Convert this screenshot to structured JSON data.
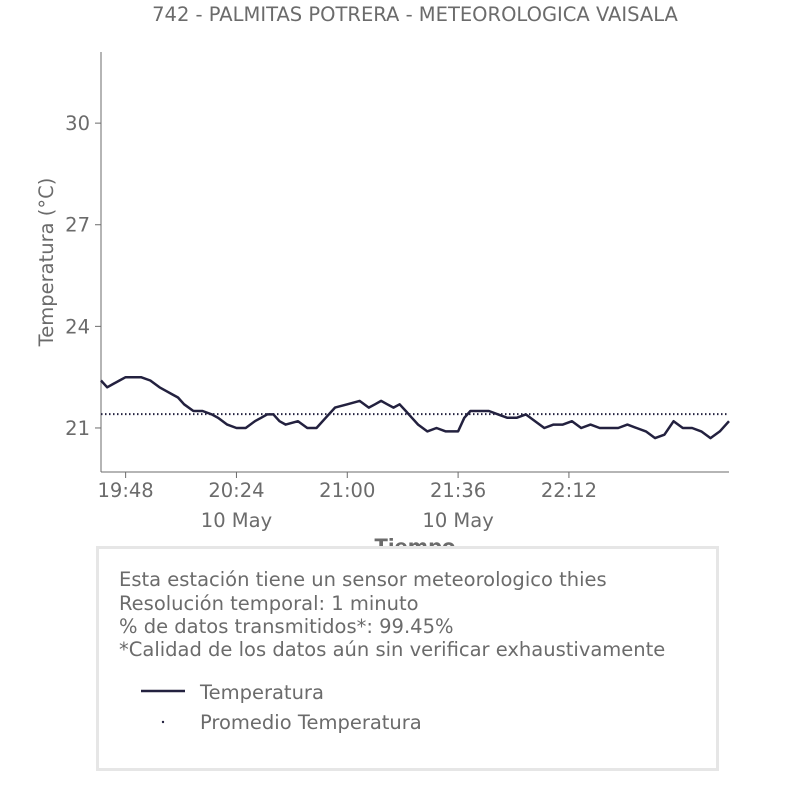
{
  "chart_data": {
    "type": "line",
    "title": "742 - PALMITAS POTRERA - METEOROLOGICA VAISALA",
    "xlabel": "Tiempo",
    "ylabel": "Temperatura (°C)",
    "x_range": [
      "19:40",
      "23:04"
    ],
    "ylim": [
      19.7,
      32.1
    ],
    "yticks": [
      21,
      24,
      27,
      30
    ],
    "xticks": [
      {
        "time": "19:48",
        "label": "19:48",
        "date": ""
      },
      {
        "time": "20:24",
        "label": "20:24",
        "date": "10 May"
      },
      {
        "time": "21:00",
        "label": "21:00",
        "date": ""
      },
      {
        "time": "21:36",
        "label": "21:36",
        "date": "10 May"
      },
      {
        "time": "22:12",
        "label": "22:12",
        "date": ""
      }
    ],
    "grid": false,
    "series": [
      {
        "name": "Temperatura",
        "style": "solid",
        "color": "#23213f",
        "x": [
          "19:40",
          "19:42",
          "19:44",
          "19:46",
          "19:48",
          "19:50",
          "19:53",
          "19:56",
          "19:59",
          "20:01",
          "20:03",
          "20:05",
          "20:07",
          "20:10",
          "20:13",
          "20:16",
          "20:18",
          "20:21",
          "20:24",
          "20:27",
          "20:30",
          "20:32",
          "20:34",
          "20:36",
          "20:38",
          "20:40",
          "20:44",
          "20:47",
          "20:50",
          "20:53",
          "20:56",
          "21:00",
          "21:04",
          "21:07",
          "21:09",
          "21:11",
          "21:13",
          "21:15",
          "21:17",
          "21:19",
          "21:21",
          "21:23",
          "21:26",
          "21:29",
          "21:32",
          "21:34",
          "21:36",
          "21:38",
          "21:40",
          "21:43",
          "21:46",
          "21:49",
          "21:52",
          "21:55",
          "21:58",
          "22:01",
          "22:04",
          "22:07",
          "22:10",
          "22:13",
          "22:16",
          "22:19",
          "22:22",
          "22:25",
          "22:28",
          "22:31",
          "22:34",
          "22:37",
          "22:40",
          "22:43",
          "22:46",
          "22:49",
          "22:52",
          "22:55",
          "22:58",
          "23:01",
          "23:04"
        ],
        "values": [
          22.4,
          22.2,
          22.3,
          22.4,
          22.5,
          22.5,
          22.5,
          22.4,
          22.2,
          22.1,
          22.0,
          21.9,
          21.7,
          21.5,
          21.5,
          21.4,
          21.3,
          21.1,
          21.0,
          21.0,
          21.2,
          21.3,
          21.4,
          21.4,
          21.2,
          21.1,
          21.2,
          21.0,
          21.0,
          21.3,
          21.6,
          21.7,
          21.8,
          21.6,
          21.7,
          21.8,
          21.7,
          21.6,
          21.7,
          21.5,
          21.3,
          21.1,
          20.9,
          21.0,
          20.9,
          20.9,
          20.9,
          21.3,
          21.5,
          21.5,
          21.5,
          21.4,
          21.3,
          21.3,
          21.4,
          21.2,
          21.0,
          21.1,
          21.1,
          21.2,
          21.0,
          21.1,
          21.0,
          21.0,
          21.0,
          21.1,
          21.0,
          20.9,
          20.7,
          20.8,
          21.2,
          21.0,
          21.0,
          20.9,
          20.7,
          20.9,
          21.2
        ]
      },
      {
        "name": "Promedio Temperatura",
        "style": "dotted",
        "color": "#23213f",
        "x": [
          "19:40",
          "23:04"
        ],
        "values": [
          21.41,
          21.41
        ]
      }
    ]
  },
  "info_box": {
    "lines": [
      "Esta estación tiene un sensor meteorologico thies",
      "Resolución temporal: 1 minuto",
      "% de datos transmitidos*: 99.45%",
      "*Calidad de los datos aún sin verificar exhaustivamente"
    ],
    "legend": [
      {
        "label": "Temperatura",
        "style": "solid"
      },
      {
        "label": "Promedio Temperatura",
        "style": "dotted"
      }
    ]
  },
  "colors": {
    "text": "#6b6b6b",
    "line": "#23213f",
    "axis": "#6b6b6b",
    "box_border": "#e6e6e6"
  }
}
